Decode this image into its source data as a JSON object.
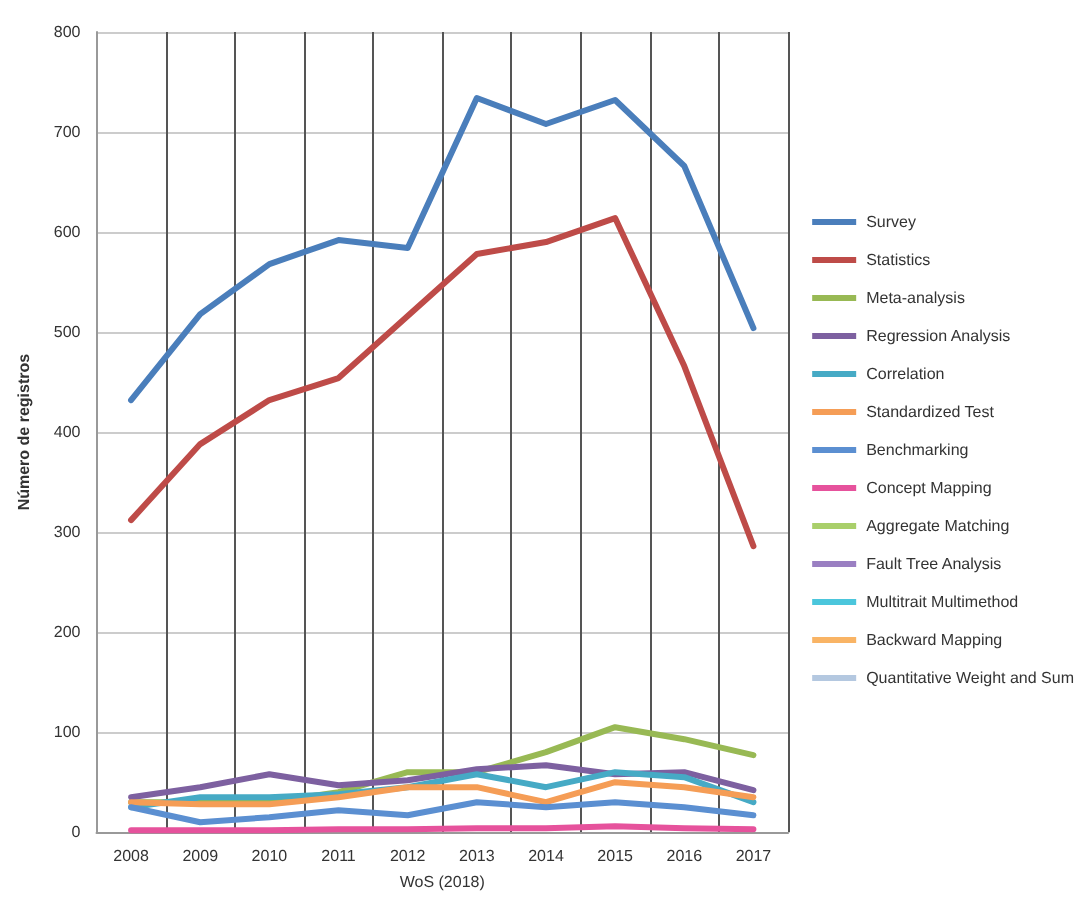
{
  "chart_data": {
    "type": "line",
    "xlabel": "WoS (2018)",
    "ylabel": "Número de registros",
    "categories": [
      "2008",
      "2009",
      "2010",
      "2011",
      "2012",
      "2013",
      "2014",
      "2015",
      "2016",
      "2017"
    ],
    "series": [
      {
        "name": "Survey",
        "color": "#4a7ebb",
        "values": [
          432,
          518,
          568,
          592,
          584,
          734,
          708,
          732,
          666,
          504
        ]
      },
      {
        "name": "Statistics",
        "color": "#be4b48",
        "values": [
          312,
          388,
          432,
          454,
          516,
          578,
          590,
          614,
          466,
          286
        ]
      },
      {
        "name": "Meta-analysis",
        "color": "#98b954",
        "values": [
          30,
          30,
          30,
          40,
          60,
          60,
          80,
          105,
          93,
          77
        ]
      },
      {
        "name": "Regression Analysis",
        "color": "#7d60a0",
        "values": [
          35,
          45,
          58,
          47,
          52,
          63,
          67,
          58,
          60,
          42
        ]
      },
      {
        "name": "Correlation",
        "color": "#46aac5",
        "values": [
          25,
          35,
          35,
          38,
          45,
          58,
          45,
          60,
          55,
          30
        ]
      },
      {
        "name": "Standardized Test",
        "color": "#f59d56",
        "values": [
          30,
          28,
          28,
          35,
          45,
          45,
          30,
          50,
          45,
          35
        ]
      },
      {
        "name": "Benchmarking",
        "color": "#5b8fd1",
        "values": [
          25,
          10,
          15,
          22,
          17,
          30,
          25,
          30,
          25,
          17
        ]
      },
      {
        "name": "Concept Mapping",
        "color": "#e6529c",
        "values": [
          2,
          2,
          2,
          3,
          3,
          4,
          4,
          6,
          4,
          3
        ]
      },
      {
        "name": "Aggregate Matching",
        "color": "#a9cf6a",
        "values": [
          null,
          null,
          null,
          null,
          null,
          null,
          null,
          null,
          null,
          null
        ]
      },
      {
        "name": "Fault Tree Analysis",
        "color": "#9a7fc2",
        "values": [
          null,
          null,
          null,
          null,
          null,
          null,
          null,
          null,
          null,
          null
        ]
      },
      {
        "name": "Multitrait Multimethod",
        "color": "#4bc6dc",
        "values": [
          null,
          null,
          null,
          null,
          null,
          null,
          null,
          null,
          null,
          null
        ]
      },
      {
        "name": "Backward Mapping",
        "color": "#f9b465",
        "values": [
          null,
          null,
          null,
          null,
          null,
          null,
          null,
          null,
          null,
          null
        ]
      },
      {
        "name": "Quantitative Weight and Sum",
        "color": "#b4c8e0",
        "values": [
          null,
          null,
          null,
          null,
          null,
          null,
          null,
          null,
          null,
          null
        ]
      }
    ],
    "ylim": [
      0,
      800
    ],
    "yticks": [
      0,
      100,
      200,
      300,
      400,
      500,
      600,
      700,
      800
    ],
    "grid": true,
    "legend": "right",
    "marker": "none",
    "line_style": "solid"
  }
}
